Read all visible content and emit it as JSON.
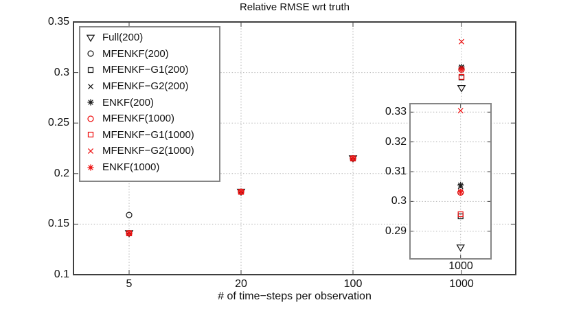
{
  "title": "Relative RMSE wrt truth",
  "axes": {
    "xlabel": "# of time−steps per observation",
    "x_ticks": [
      "5",
      "20",
      "100",
      "1000"
    ],
    "y_ticks": [
      "0.35",
      "0.3",
      "0.25",
      "0.2",
      "0.15",
      "0.1"
    ]
  },
  "legend": {
    "items": [
      {
        "label": "Full(200)",
        "marker": "triangle-down",
        "color": "#1a1a1a"
      },
      {
        "label": "MFENKF(200)",
        "marker": "circle",
        "color": "#1a1a1a"
      },
      {
        "label": "MFENKF−G1(200)",
        "marker": "square",
        "color": "#1a1a1a"
      },
      {
        "label": "MFENKF−G2(200)",
        "marker": "x",
        "color": "#1a1a1a"
      },
      {
        "label": "ENKF(200)",
        "marker": "asterisk",
        "color": "#1a1a1a"
      },
      {
        "label": "MFENKF(1000)",
        "marker": "circle",
        "color": "#ee1111"
      },
      {
        "label": "MFENKF−G1(1000)",
        "marker": "square",
        "color": "#ee1111"
      },
      {
        "label": "MFENKF−G2(1000)",
        "marker": "x",
        "color": "#ee1111"
      },
      {
        "label": "ENKF(1000)",
        "marker": "asterisk",
        "color": "#ee1111"
      }
    ]
  },
  "inset": {
    "y_ticks": [
      "0.33",
      "0.32",
      "0.31",
      "0.3",
      "0.29"
    ],
    "x_tick": "1000"
  },
  "colors": {
    "black_series": "#1a1a1a",
    "red_series": "#ee1111",
    "grid": "#b5b5b5",
    "axis_box": "#3f3f3f",
    "legend_border": "#858585"
  },
  "chart_data": {
    "type": "scatter",
    "title": "Relative RMSE wrt truth",
    "xlabel": "# of time-steps per observation",
    "x_categories": [
      5,
      20,
      100,
      1000
    ],
    "x_tick_spacing": "even",
    "ylim": [
      0.1,
      0.35
    ],
    "grid": true,
    "legend_position": "top-left",
    "series": [
      {
        "name": "Full(200)",
        "values": [
          0.141,
          0.182,
          0.215,
          0.2845
        ]
      },
      {
        "name": "MFENKF(200)",
        "values": [
          0.159,
          0.182,
          0.215,
          0.303
        ]
      },
      {
        "name": "MFENKF-G1(200)",
        "values": [
          0.141,
          0.182,
          0.215,
          0.295
        ]
      },
      {
        "name": "MFENKF-G2(200)",
        "values": [
          0.141,
          0.182,
          0.215,
          0.305
        ]
      },
      {
        "name": "ENKF(200)",
        "values": [
          0.141,
          0.182,
          0.215,
          0.3055
        ]
      },
      {
        "name": "MFENKF(1000)",
        "values": [
          0.141,
          0.182,
          0.215,
          0.303
        ]
      },
      {
        "name": "MFENKF-G1(1000)",
        "values": [
          0.141,
          0.182,
          0.215,
          0.2957
        ]
      },
      {
        "name": "MFENKF-G2(1000)",
        "values": [
          0.141,
          0.182,
          0.215,
          0.3305
        ]
      },
      {
        "name": "ENKF(1000)",
        "values": [
          0.141,
          0.182,
          0.215,
          0.3032
        ]
      }
    ],
    "inset": {
      "x": 1000,
      "ylim": [
        0.2807,
        0.3328
      ],
      "y_ticks": [
        0.33,
        0.32,
        0.31,
        0.3,
        0.29
      ],
      "x_tick": 1000,
      "values_at_1000": {
        "Full(200)": 0.2845,
        "MFENKF(200)": 0.303,
        "MFENKF-G1(200)": 0.295,
        "MFENKF-G2(200)": 0.305,
        "ENKF(200)": 0.3055,
        "MFENKF(1000)": 0.303,
        "MFENKF-G1(1000)": 0.2957,
        "MFENKF-G2(1000)": 0.3305,
        "ENKF(1000)": 0.3032
      }
    }
  }
}
